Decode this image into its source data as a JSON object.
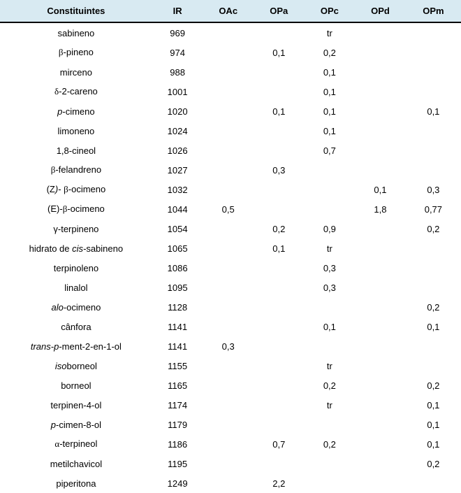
{
  "table": {
    "header_bg": "#d8eaf2",
    "border_color": "#000000",
    "columns": [
      "Constituintes",
      "IR",
      "OAc",
      "OPa",
      "OPc",
      "OPd",
      "OPm"
    ],
    "rows": [
      {
        "name_html": "sabineno",
        "ir": "969",
        "oac": "",
        "opa": "",
        "opc": "tr",
        "opd": "",
        "opm": ""
      },
      {
        "name_html": "<span class='greek'>β</span>-pineno",
        "ir": "974",
        "oac": "",
        "opa": "0,1",
        "opc": "0,2",
        "opd": "",
        "opm": ""
      },
      {
        "name_html": "mirceno",
        "ir": "988",
        "oac": "",
        "opa": "",
        "opc": "0,1",
        "opd": "",
        "opm": ""
      },
      {
        "name_html": "<span class='greek'>δ</span>-2-careno",
        "ir": "1001",
        "oac": "",
        "opa": "",
        "opc": "0,1",
        "opd": "",
        "opm": ""
      },
      {
        "name_html": "<span class='ital'>p</span>-cimeno",
        "ir": "1020",
        "oac": "",
        "opa": "0,1",
        "opc": "0,1",
        "opd": "",
        "opm": "0,1"
      },
      {
        "name_html": "limoneno",
        "ir": "1024",
        "oac": "",
        "opa": "",
        "opc": "0,1",
        "opd": "",
        "opm": ""
      },
      {
        "name_html": "1,8-cineol",
        "ir": "1026",
        "oac": "",
        "opa": "",
        "opc": "0,7",
        "opd": "",
        "opm": ""
      },
      {
        "name_html": "<span class='greek'>β</span>-felandreno",
        "ir": "1027",
        "oac": "",
        "opa": "0,3",
        "opc": "",
        "opd": "",
        "opm": ""
      },
      {
        "name_html": "(Z<span class='ital'>)</span>- <span class='greek'>β</span>-ocimeno",
        "ir": "1032",
        "oac": "",
        "opa": "",
        "opc": "",
        "opd": "0,1",
        "opm": "0,3"
      },
      {
        "name_html": "(E)-<span class='greek'>β</span>-ocimeno",
        "ir": "1044",
        "oac": "0,5",
        "opa": "",
        "opc": "",
        "opd": "1,8",
        "opm": "0,77"
      },
      {
        "name_html": "γ-terpineno",
        "ir": "1054",
        "oac": "",
        "opa": "0,2",
        "opc": "0,9",
        "opd": "",
        "opm": "0,2"
      },
      {
        "name_html": "hidrato de <span class='ital'>cis-</span>sabineno",
        "ir": "1065",
        "oac": "",
        "opa": "0,1",
        "opc": "tr",
        "opd": "",
        "opm": ""
      },
      {
        "name_html": "terpinoleno",
        "ir": "1086",
        "oac": "",
        "opa": "",
        "opc": "0,3",
        "opd": "",
        "opm": ""
      },
      {
        "name_html": "linalol",
        "ir": "1095",
        "oac": "",
        "opa": "",
        "opc": "0,3",
        "opd": "",
        "opm": ""
      },
      {
        "name_html": "<span class='ital'>alo</span>-ocimeno",
        "ir": "1128",
        "oac": "",
        "opa": "",
        "opc": "",
        "opd": "",
        "opm": "0,2"
      },
      {
        "name_html": "cânfora",
        "ir": "1141",
        "oac": "",
        "opa": "",
        "opc": "0,1",
        "opd": "",
        "opm": "0,1"
      },
      {
        "name_html": "<span class='ital'>trans-p</span>-ment-2-en-1-ol",
        "ir": "1141",
        "oac": "0,3",
        "opa": "",
        "opc": "",
        "opd": "",
        "opm": ""
      },
      {
        "name_html": "<span class='ital'>iso</span>borneol",
        "ir": "1155",
        "oac": "",
        "opa": "",
        "opc": "tr",
        "opd": "",
        "opm": ""
      },
      {
        "name_html": "borneol",
        "ir": "1165",
        "oac": "",
        "opa": "",
        "opc": "0,2",
        "opd": "",
        "opm": "0,2"
      },
      {
        "name_html": "terpinen-4-ol",
        "ir": "1174",
        "oac": "",
        "opa": "",
        "opc": "tr",
        "opd": "",
        "opm": "0,1"
      },
      {
        "name_html": "<span class='ital'>p</span>-cimen-8-ol",
        "ir": "1179",
        "oac": "",
        "opa": "",
        "opc": "",
        "opd": "",
        "opm": "0,1"
      },
      {
        "name_html": "<span class='greek'>α</span>-terpineol",
        "ir": "1186",
        "oac": "",
        "opa": "0,7",
        "opc": "0,2",
        "opd": "",
        "opm": "0,1"
      },
      {
        "name_html": "metilchavicol",
        "ir": "1195",
        "oac": "",
        "opa": "",
        "opc": "",
        "opd": "",
        "opm": "0,2"
      },
      {
        "name_html": "piperitona",
        "ir": "1249",
        "oac": "",
        "opa": "2,2",
        "opc": "",
        "opd": "",
        "opm": ""
      }
    ]
  }
}
